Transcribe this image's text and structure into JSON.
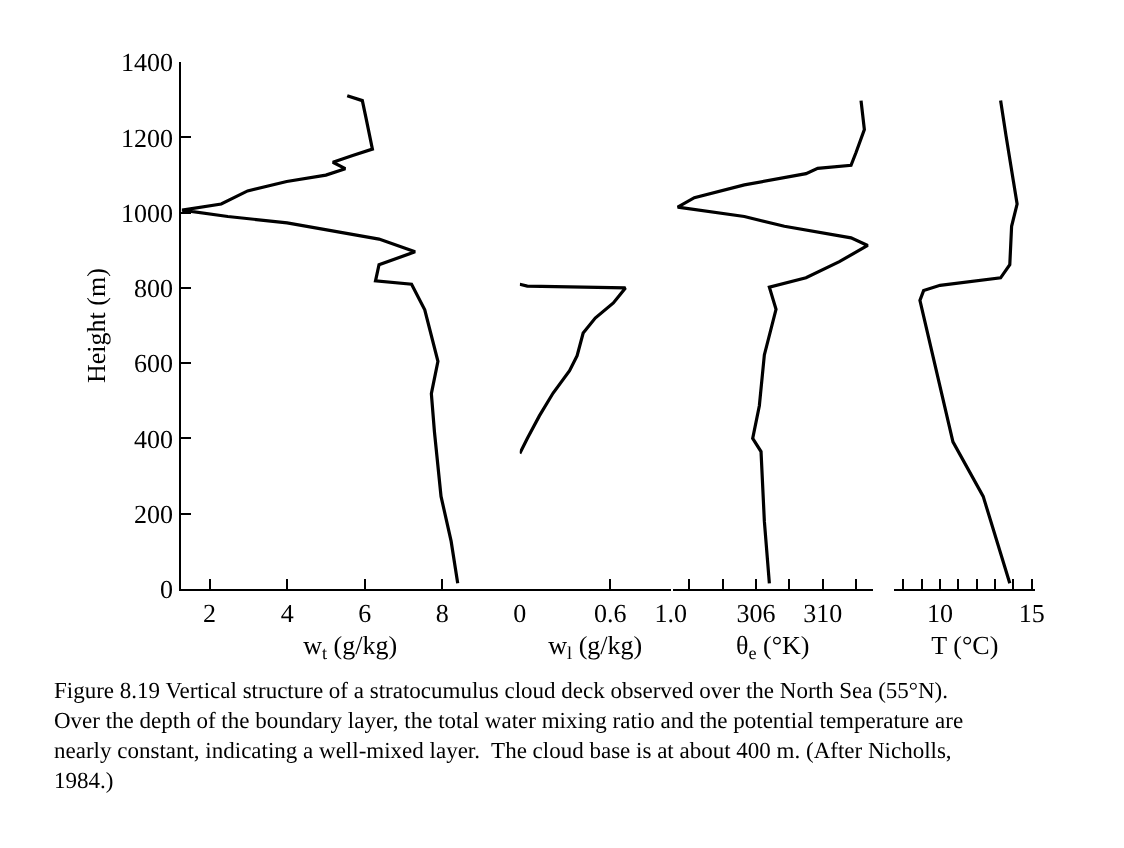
{
  "chart_data": [
    {
      "type": "line",
      "ylabel": "Height (m)",
      "xlabel": "w$_{t}$ (g/kg)",
      "xlim": [
        1.25,
        10
      ],
      "xticks": [
        2,
        4,
        6,
        8
      ],
      "ylim": [
        0,
        1400
      ],
      "yticks": [
        0,
        200,
        400,
        600,
        800,
        1000,
        1200,
        1400
      ],
      "marker": "none",
      "line_style": "solid",
      "series": [
        {
          "color": "#000000",
          "x": [
            8.4,
            8.23,
            7.97,
            7.8,
            7.72,
            7.89,
            7.55,
            7.21,
            6.28,
            6.37,
            7.3,
            6.37,
            4.0,
            2.47,
            1.29,
            2.3,
            2.98,
            3.99,
            5.0,
            5.5,
            5.18,
            5.69,
            6.2,
            6.03,
            5.94,
            5.55
          ],
          "values": [
            15,
            127,
            246,
            417,
            519,
            605,
            742,
            810,
            819,
            862,
            896,
            930,
            973,
            990,
            1007,
            1023,
            1058,
            1083,
            1100,
            1117,
            1134,
            1152,
            1169,
            1254,
            1298,
            1311
          ]
        }
      ],
      "annotations": [
        "Figure 8.19 Vertical structure of a stratocumulus cloud deck observed over the North Sea (55°N). Over the depth of the boundary layer, the total water mixing ratio and the potential temperature are nearly constant, indicating a well-mixed layer.  The cloud base is at about 400 m. (After Nicholls, 1984.)"
      ]
    },
    {
      "type": "line",
      "xlabel": "w$_{l}$ (g/kg)",
      "xlim": [
        0,
        1.0
      ],
      "xticks": [
        0,
        0.6,
        {
          "value": 1.0,
          "label": "1.0"
        }
      ],
      "ylim": [
        0,
        1400
      ],
      "tick_labels": "x",
      "marker": "none",
      "line_style": "solid",
      "series": [
        {
          "color": "#000000",
          "x": [
            0,
            0.05,
            0.13,
            0.22,
            0.33,
            0.38,
            0.42,
            0.5,
            0.62,
            0.68,
            0.7,
            0.05,
            0
          ],
          "values": [
            360,
            400,
            460,
            520,
            580,
            620,
            680,
            720,
            760,
            790,
            800,
            805,
            810
          ]
        }
      ]
    },
    {
      "type": "line",
      "xlabel": "θ$_{e}$ (°K)",
      "xlim": [
        301,
        313
      ],
      "xticks": [
        {
          "value": 302,
          "label": null
        },
        {
          "value": 304,
          "label": null
        },
        306,
        {
          "value": 308,
          "label": null
        },
        310,
        {
          "value": 312,
          "label": null
        }
      ],
      "ylim": [
        0,
        1400
      ],
      "tick_labels": "x",
      "marker": "none",
      "line_style": "solid",
      "series": [
        {
          "color": "#000000",
          "x": [
            306.8,
            306.5,
            306.3,
            305.8,
            306.2,
            306.5,
            307.2,
            306.8,
            309.0,
            311.0,
            312.7,
            311.7,
            307.7,
            305.3,
            301.3,
            302.3,
            305.3,
            309.0,
            309.7,
            311.7,
            312.0,
            312.5,
            312.3
          ],
          "values": [
            15,
            180,
            365,
            400,
            487,
            622,
            743,
            802,
            827,
            870,
            913,
            933,
            964,
            990,
            1015,
            1040,
            1074,
            1104,
            1118,
            1126,
            1160,
            1221,
            1298
          ]
        }
      ]
    },
    {
      "type": "line",
      "xlabel": "T (°C)",
      "xlim": [
        7.5,
        15.2
      ],
      "xticks": [
        {
          "value": 8,
          "label": null
        },
        {
          "value": 9,
          "label": null
        },
        10,
        {
          "value": 11,
          "label": null
        },
        {
          "value": 12,
          "label": null
        },
        {
          "value": 13,
          "label": null
        },
        {
          "value": 14,
          "label": null
        },
        15
      ],
      "ylim": [
        0,
        1400
      ],
      "tick_labels": "x",
      "marker": "none",
      "line_style": "solid",
      "series": [
        {
          "color": "#000000",
          "x": [
            13.8,
            12.35,
            10.7,
            8.9,
            9.1,
            10.0,
            13.3,
            13.8,
            13.9,
            14.2,
            14.0,
            13.6,
            13.3
          ],
          "values": [
            15,
            246,
            391,
            767,
            793,
            807,
            827,
            862,
            964,
            1023,
            1083,
            1203,
            1298
          ]
        }
      ]
    }
  ]
}
